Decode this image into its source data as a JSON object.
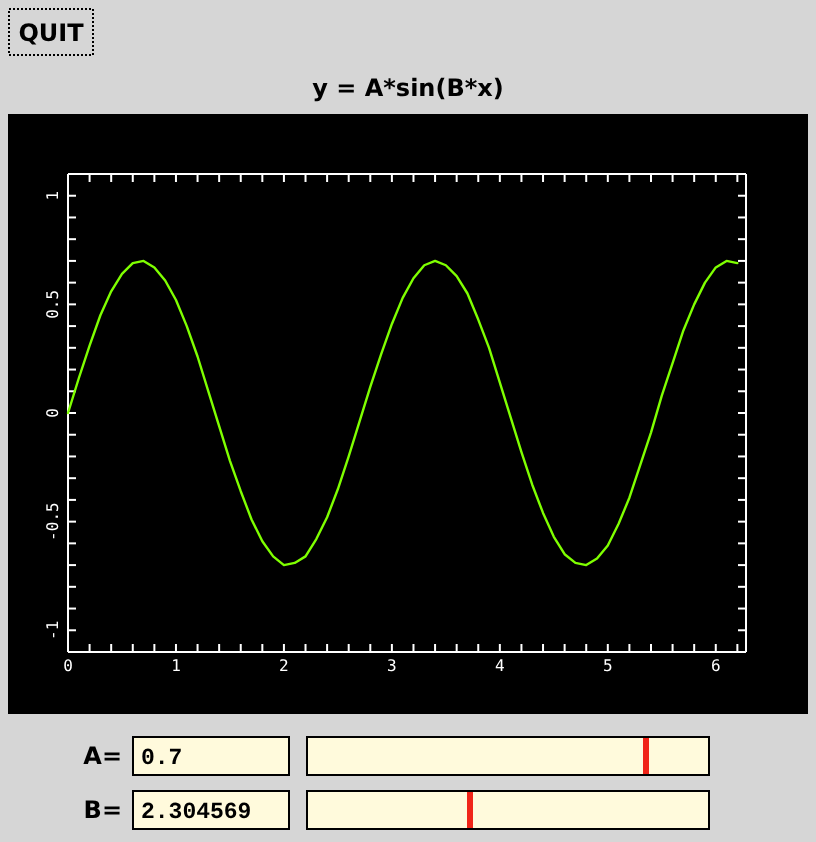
{
  "chart_data": {
    "type": "line",
    "title": "y = A*sin(B*x)",
    "x": [
      0,
      0.1,
      0.2,
      0.3,
      0.4,
      0.5,
      0.6,
      0.7,
      0.8,
      0.9,
      1.0,
      1.1,
      1.2,
      1.3,
      1.4,
      1.5,
      1.6,
      1.7,
      1.8,
      1.9,
      2.0,
      2.1,
      2.2,
      2.3,
      2.4,
      2.5,
      2.6,
      2.7,
      2.8,
      2.9,
      3.0,
      3.1,
      3.2,
      3.3,
      3.4,
      3.5,
      3.6,
      3.7,
      3.8,
      3.9,
      4.0,
      4.1,
      4.2,
      4.3,
      4.4,
      4.5,
      4.6,
      4.7,
      4.8,
      4.9,
      5.0,
      5.1,
      5.2,
      5.3,
      5.4,
      5.5,
      5.6,
      5.7,
      5.8,
      5.9,
      6.0,
      6.1,
      6.2
    ],
    "values": [
      0,
      0.16,
      0.31,
      0.45,
      0.56,
      0.64,
      0.69,
      0.7,
      0.67,
      0.61,
      0.52,
      0.4,
      0.26,
      0.1,
      -0.06,
      -0.22,
      -0.36,
      -0.49,
      -0.59,
      -0.66,
      -0.7,
      -0.69,
      -0.66,
      -0.58,
      -0.48,
      -0.35,
      -0.2,
      -0.04,
      0.12,
      0.27,
      0.41,
      0.53,
      0.62,
      0.68,
      0.7,
      0.68,
      0.63,
      0.55,
      0.43,
      0.3,
      0.14,
      -0.02,
      -0.18,
      -0.33,
      -0.46,
      -0.57,
      -0.65,
      -0.69,
      -0.7,
      -0.67,
      -0.61,
      -0.51,
      -0.39,
      -0.24,
      -0.09,
      0.08,
      0.23,
      0.38,
      0.5,
      0.6,
      0.67,
      0.7,
      0.69
    ],
    "color": "#7fff00",
    "xlim": [
      0,
      6.28
    ],
    "ylim": [
      -1.1,
      1.1
    ],
    "xticks": [
      0,
      {
        "value": 0.2,
        "label": null
      },
      {
        "value": 0.4,
        "label": null
      },
      {
        "value": 0.6,
        "label": null
      },
      {
        "value": 0.8,
        "label": null
      },
      1,
      {
        "value": 1.2,
        "label": null
      },
      {
        "value": 1.4,
        "label": null
      },
      {
        "value": 1.6,
        "label": null
      },
      {
        "value": 1.8,
        "label": null
      },
      2,
      {
        "value": 2.2,
        "label": null
      },
      {
        "value": 2.4,
        "label": null
      },
      {
        "value": 2.6,
        "label": null
      },
      {
        "value": 2.8,
        "label": null
      },
      3,
      {
        "value": 3.2,
        "label": null
      },
      {
        "value": 3.4,
        "label": null
      },
      {
        "value": 3.6,
        "label": null
      },
      {
        "value": 3.8,
        "label": null
      },
      4,
      {
        "value": 4.2,
        "label": null
      },
      {
        "value": 4.4,
        "label": null
      },
      {
        "value": 4.6,
        "label": null
      },
      {
        "value": 4.8,
        "label": null
      },
      5,
      {
        "value": 5.2,
        "label": null
      },
      {
        "value": 5.4,
        "label": null
      },
      {
        "value": 5.6,
        "label": null
      },
      {
        "value": 5.8,
        "label": null
      },
      6,
      {
        "value": 6.2,
        "label": null
      }
    ],
    "yticks": [
      -1,
      {
        "value": -0.9,
        "label": null
      },
      {
        "value": -0.8,
        "label": null
      },
      {
        "value": -0.7,
        "label": null
      },
      {
        "value": -0.6,
        "label": null
      },
      -0.5,
      {
        "value": -0.4,
        "label": null
      },
      {
        "value": -0.3,
        "label": null
      },
      {
        "value": -0.2,
        "label": null
      },
      {
        "value": -0.1,
        "label": null
      },
      0,
      {
        "value": 0.1,
        "label": null
      },
      {
        "value": 0.2,
        "label": null
      },
      {
        "value": 0.3,
        "label": null
      },
      {
        "value": 0.4,
        "label": null
      },
      0.5,
      {
        "value": 0.6,
        "label": null
      },
      {
        "value": 0.7,
        "label": null
      },
      {
        "value": 0.8,
        "label": null
      },
      {
        "value": 0.9,
        "label": null
      },
      1
    ],
    "annotations": [
      "QUIT",
      "A=",
      "0.7",
      "B=",
      "2.304569"
    ]
  }
}
